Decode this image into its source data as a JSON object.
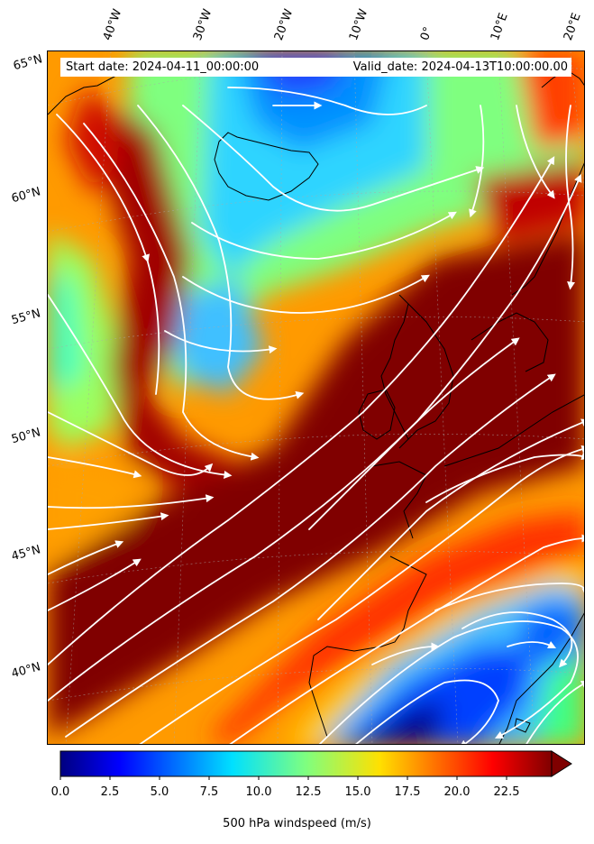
{
  "banner": {
    "start_date": "Start date: 2024-04-11_00:00:00",
    "valid_date": "Valid_date: 2024-04-13T10:00:00.00"
  },
  "longitude_labels": [
    "40°W",
    "30°W",
    "20°W",
    "10°W",
    "0°",
    "10°E",
    "20°E"
  ],
  "latitude_labels": [
    "65°N",
    "60°N",
    "55°N",
    "50°N",
    "45°N",
    "40°N"
  ],
  "colorbar": {
    "label": "500 hPa windspeed (m/s)",
    "ticks": [
      "0.0",
      "2.5",
      "5.0",
      "7.5",
      "10.0",
      "12.5",
      "15.0",
      "17.5",
      "20.0",
      "22.5"
    ],
    "min": 0,
    "max": 25,
    "extend": "max",
    "colormap": "jet"
  },
  "colors": {
    "low": "#00007f",
    "mid_low": "#0080ff",
    "mid": "#7fff7f",
    "mid_high": "#ff8000",
    "high": "#7f0000",
    "streamline": "#ffffff",
    "coastline": "#000000"
  }
}
